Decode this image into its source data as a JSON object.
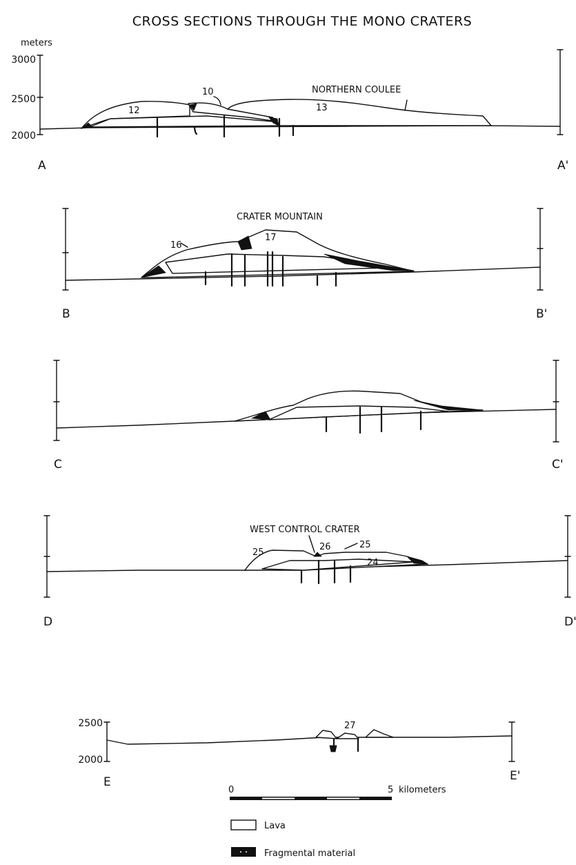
{
  "title": "CROSS SECTIONS THROUGH THE MONO CRATERS",
  "units": "meters",
  "sections": [
    {
      "start": "A",
      "end": "A'",
      "ticks": [
        "3000",
        "2500",
        "2000"
      ],
      "labels": [
        "NORTHERN COULEE",
        "10",
        "12",
        "13"
      ]
    },
    {
      "start": "B",
      "end": "B'",
      "labels": [
        "CRATER MOUNTAIN",
        "16",
        "17"
      ]
    },
    {
      "start": "C",
      "end": "C'",
      "labels": []
    },
    {
      "start": "D",
      "end": "D'",
      "labels": [
        "WEST CONTROL CRATER",
        "25",
        "26",
        "25",
        "24"
      ]
    },
    {
      "start": "E",
      "end": "E'",
      "ticks": [
        "2500",
        "2000"
      ],
      "labels": [
        "27"
      ]
    }
  ],
  "scale": {
    "start": "0",
    "end": "5",
    "unit": "kilometers"
  },
  "legend": [
    {
      "label": "Lava",
      "swatch": "white"
    },
    {
      "label": "Fragmental material",
      "swatch": "black"
    }
  ]
}
